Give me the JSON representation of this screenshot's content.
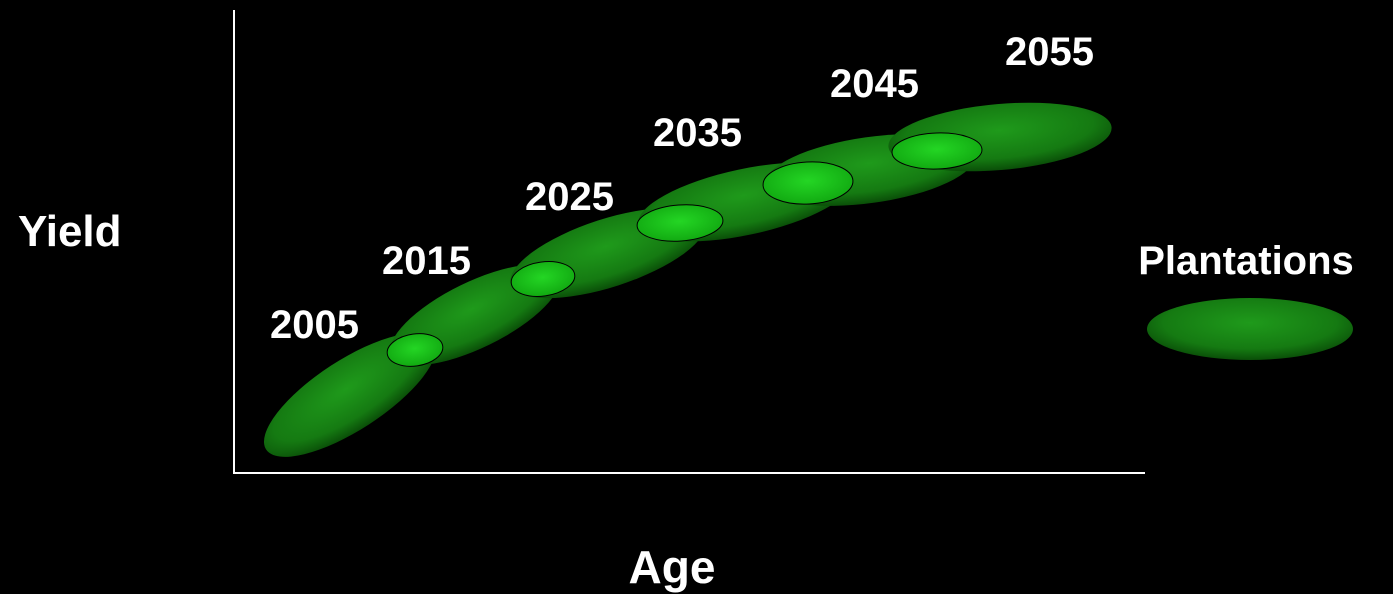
{
  "axes": {
    "y_label": "Yield",
    "x_label": "Age"
  },
  "legend": {
    "label": "Plantations",
    "swatch_color": "#1f8f1a"
  },
  "colors": {
    "background": "#000000",
    "axis": "#ffffff",
    "text": "#ffffff",
    "ellipse_fill": "#1f8f1a",
    "ellipse_dark": "#0a4e08",
    "overlap_fill": "#19c919"
  },
  "periods": [
    "2005",
    "2015",
    "2025",
    "2035",
    "2045",
    "2055"
  ]
}
